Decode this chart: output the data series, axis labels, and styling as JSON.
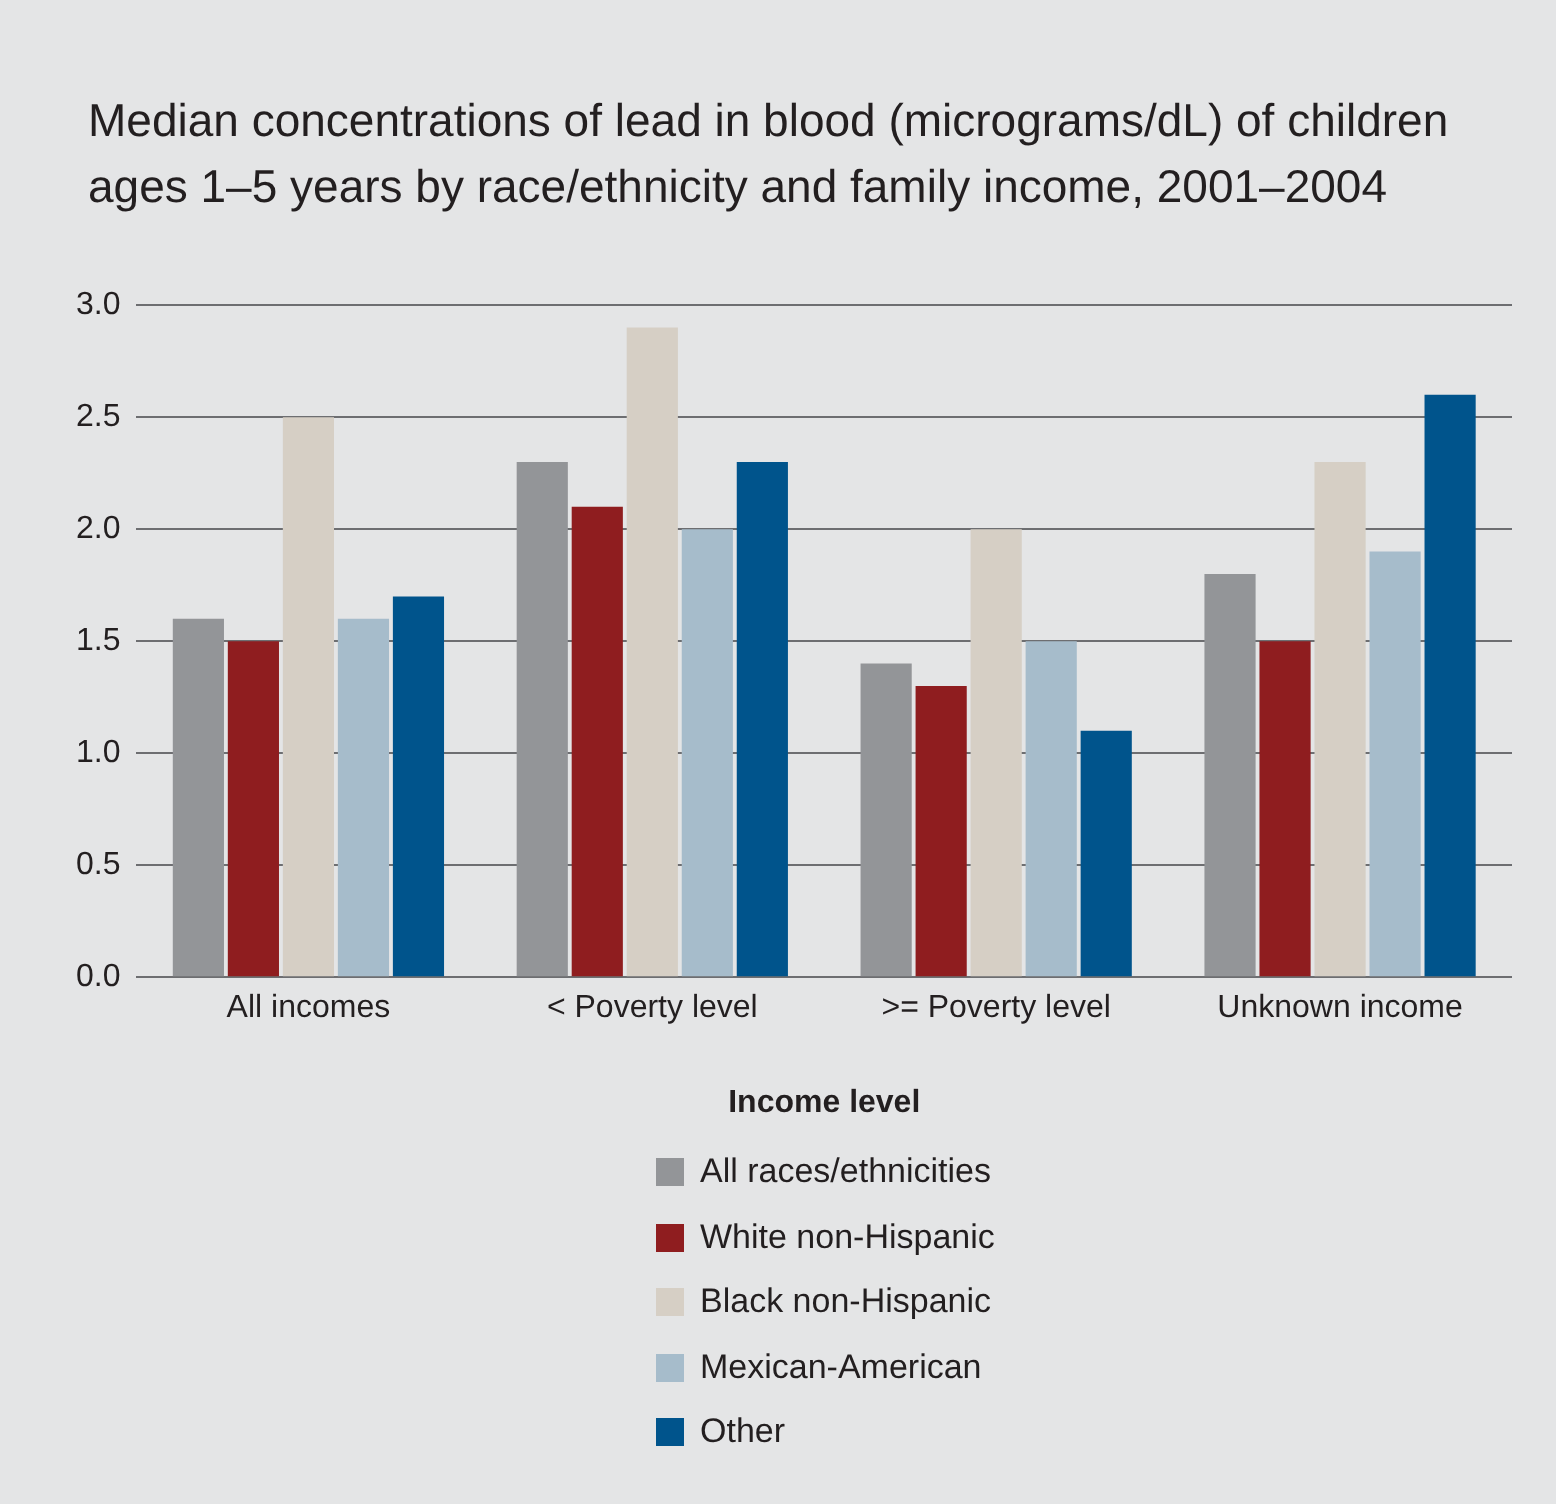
{
  "chart_data": {
    "type": "bar",
    "title": "Median concentrations of lead in blood (micrograms/dL) of children ages 1–5 years by race/ethnicity and family income, 2001–2004",
    "xlabel": "Income level",
    "categories": [
      "All incomes",
      "< Poverty level",
      ">= Poverty level",
      "Unknown income"
    ],
    "series": [
      {
        "name": "All races/ethnicities",
        "color": "#939598",
        "values": [
          1.6,
          2.3,
          1.4,
          1.8
        ]
      },
      {
        "name": "White non-Hispanic",
        "color": "#8f1d1f",
        "values": [
          1.5,
          2.1,
          1.3,
          1.5
        ]
      },
      {
        "name": "Black non-Hispanic",
        "color": "#d6cfc5",
        "values": [
          2.5,
          2.9,
          2.0,
          2.3
        ]
      },
      {
        "name": "Mexican-American",
        "color": "#a6bccb",
        "values": [
          1.6,
          2.0,
          1.5,
          1.9
        ]
      },
      {
        "name": "Other",
        "color": "#00548c",
        "values": [
          1.7,
          2.3,
          1.1,
          2.6
        ]
      }
    ],
    "ylim": [
      0,
      3
    ],
    "yticks": [
      {
        "value": 0,
        "label": "0.0"
      },
      {
        "value": 0.5,
        "label": "0.5"
      },
      {
        "value": 1,
        "label": "1.0"
      },
      {
        "value": 1.5,
        "label": "1.5"
      },
      {
        "value": 2,
        "label": "2.0"
      },
      {
        "value": 2.5,
        "label": "2.5"
      },
      {
        "value": 3,
        "label": "3.0"
      }
    ],
    "grid": "y",
    "legend": "bottom"
  }
}
